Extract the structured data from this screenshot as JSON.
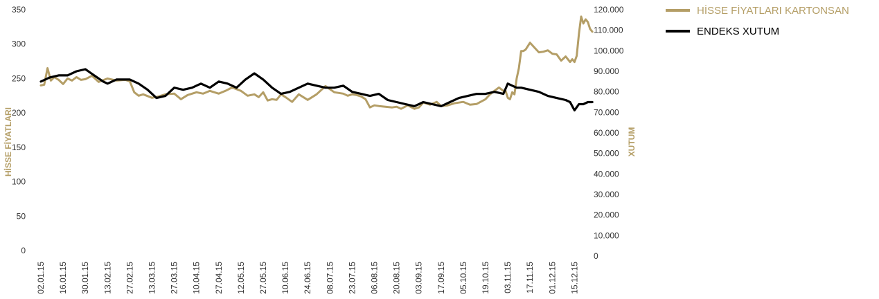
{
  "chart_data": {
    "type": "line",
    "x_tick_labels": [
      "02.01.15",
      "16.01.15",
      "30.01.15",
      "13.02.15",
      "27.02.15",
      "13.03.15",
      "27.03.15",
      "10.04.15",
      "27.04.15",
      "12.05.15",
      "27.05.15",
      "10.06.15",
      "24.06.15",
      "08.07.15",
      "23.07.15",
      "06.08.15",
      "20.08.15",
      "03.09.15",
      "17.09.15",
      "05.10.15",
      "19.10.15",
      "03.11.15",
      "17.11.15",
      "01.12.15",
      "15.12.15"
    ],
    "y_left": {
      "label": "HİSSE FİYATLARI",
      "range": [
        0,
        350
      ],
      "ticks": [
        {
          "value": 0,
          "label": "0"
        },
        {
          "value": 50,
          "label": "50"
        },
        {
          "value": 100,
          "label": "100"
        },
        {
          "value": 150,
          "label": "150"
        },
        {
          "value": 200,
          "label": "200"
        },
        {
          "value": 250,
          "label": "250"
        },
        {
          "value": 300,
          "label": "300"
        },
        {
          "value": 350,
          "label": "350"
        }
      ]
    },
    "y_right": {
      "label": "XUTUM",
      "range": [
        0,
        120000
      ],
      "ticks": [
        {
          "value": 0,
          "label": "0"
        },
        {
          "value": 10000,
          "label": "10.000"
        },
        {
          "value": 20000,
          "label": "20.000"
        },
        {
          "value": 30000,
          "label": "30.000"
        },
        {
          "value": 40000,
          "label": "40.000"
        },
        {
          "value": 50000,
          "label": "50.000"
        },
        {
          "value": 60000,
          "label": "60.000"
        },
        {
          "value": 70000,
          "label": "70.000"
        },
        {
          "value": 80000,
          "label": "80.000"
        },
        {
          "value": 90000,
          "label": "90.000"
        },
        {
          "value": 100000,
          "label": "100.000"
        },
        {
          "value": 110000,
          "label": "110.000"
        },
        {
          "value": 120000,
          "label": "120.000"
        }
      ]
    },
    "series": [
      {
        "name": "HİSSE FİYATLARI KARTONSAN",
        "axis": "left",
        "color": "#b49e66",
        "x_index": [
          0,
          0.15,
          0.3,
          0.45,
          0.6,
          0.8,
          1,
          1.2,
          1.4,
          1.6,
          1.8,
          2,
          2.3,
          2.6,
          3,
          3.4,
          3.8,
          4,
          4.2,
          4.4,
          4.6,
          5,
          5.3,
          5.6,
          6,
          6.3,
          6.6,
          7,
          7.3,
          7.6,
          8,
          8.3,
          8.6,
          9,
          9.3,
          9.6,
          9.8,
          10,
          10.2,
          10.4,
          10.6,
          10.8,
          11,
          11.3,
          11.6,
          12,
          12.4,
          12.8,
          13.2,
          13.6,
          13.8,
          14,
          14.2,
          14.4,
          14.6,
          14.8,
          15,
          15.2,
          15.5,
          15.8,
          16,
          16.2,
          16.5,
          16.8,
          17,
          17.2,
          17.5,
          17.8,
          18,
          18.3,
          18.6,
          19,
          19.3,
          19.6,
          20,
          20.2,
          20.4,
          20.6,
          20.8,
          20.9,
          21,
          21.1,
          21.2,
          21.3,
          21.4,
          21.5,
          21.6,
          21.7,
          21.8,
          22,
          22.2,
          22.4,
          22.6,
          22.8,
          23,
          23.2,
          23.4,
          23.6,
          23.8,
          23.9,
          24,
          24.1,
          24.2,
          24.3,
          24.4,
          24.5,
          24.6,
          24.7,
          24.8
        ],
        "values": [
          240,
          241,
          265,
          247,
          252,
          248,
          242,
          250,
          247,
          252,
          248,
          249,
          254,
          245,
          250,
          247,
          248,
          246,
          230,
          225,
          227,
          222,
          224,
          227,
          228,
          220,
          226,
          230,
          228,
          232,
          228,
          232,
          237,
          232,
          225,
          227,
          223,
          230,
          218,
          220,
          219,
          227,
          223,
          216,
          227,
          219,
          227,
          239,
          230,
          228,
          225,
          227,
          226,
          224,
          220,
          208,
          211,
          210,
          209,
          208,
          209,
          206,
          211,
          206,
          208,
          215,
          212,
          216,
          210,
          211,
          214,
          216,
          212,
          213,
          220,
          227,
          232,
          237,
          232,
          232,
          222,
          220,
          230,
          227,
          250,
          265,
          290,
          290,
          292,
          302,
          295,
          288,
          289,
          291,
          286,
          285,
          276,
          282,
          274,
          278,
          274,
          283,
          315,
          340,
          330,
          336,
          332,
          322,
          318
        ]
      },
      {
        "name": "ENDEKS XUTUM",
        "axis": "right",
        "color": "#000000",
        "x_index": [
          0,
          0.4,
          0.8,
          1.2,
          1.6,
          2,
          2.4,
          2.8,
          3,
          3.4,
          3.8,
          4,
          4.4,
          4.8,
          5.2,
          5.6,
          6,
          6.4,
          6.8,
          7.2,
          7.6,
          8,
          8.4,
          8.8,
          9.2,
          9.6,
          10,
          10.4,
          10.8,
          11.2,
          11.6,
          12,
          12.4,
          12.8,
          13.2,
          13.6,
          14,
          14.4,
          14.8,
          15.2,
          15.6,
          16,
          16.4,
          16.8,
          17.2,
          17.6,
          18,
          18.4,
          18.8,
          19.2,
          19.6,
          20,
          20.4,
          20.8,
          21,
          21.2,
          21.4,
          21.6,
          22,
          22.4,
          22.8,
          23.2,
          23.6,
          23.8,
          24,
          24.2,
          24.4,
          24.6,
          24.8
        ],
        "values": [
          85000,
          87000,
          88000,
          88000,
          90000,
          91000,
          88000,
          85000,
          84000,
          86000,
          86000,
          86000,
          84000,
          81000,
          77000,
          78000,
          82000,
          81000,
          82000,
          84000,
          82000,
          85000,
          84000,
          82000,
          86000,
          89000,
          86000,
          82000,
          79000,
          80000,
          82000,
          84000,
          83000,
          82000,
          82000,
          83000,
          80000,
          79000,
          78000,
          79000,
          76000,
          75000,
          74000,
          73000,
          75000,
          74000,
          73000,
          75000,
          77000,
          78000,
          79000,
          79000,
          80000,
          79000,
          84000,
          83000,
          82000,
          82000,
          81000,
          80000,
          78000,
          77000,
          76000,
          75000,
          71000,
          74000,
          74000,
          75000,
          75000
        ]
      }
    ],
    "legend_position": "top-right",
    "grid": false
  }
}
